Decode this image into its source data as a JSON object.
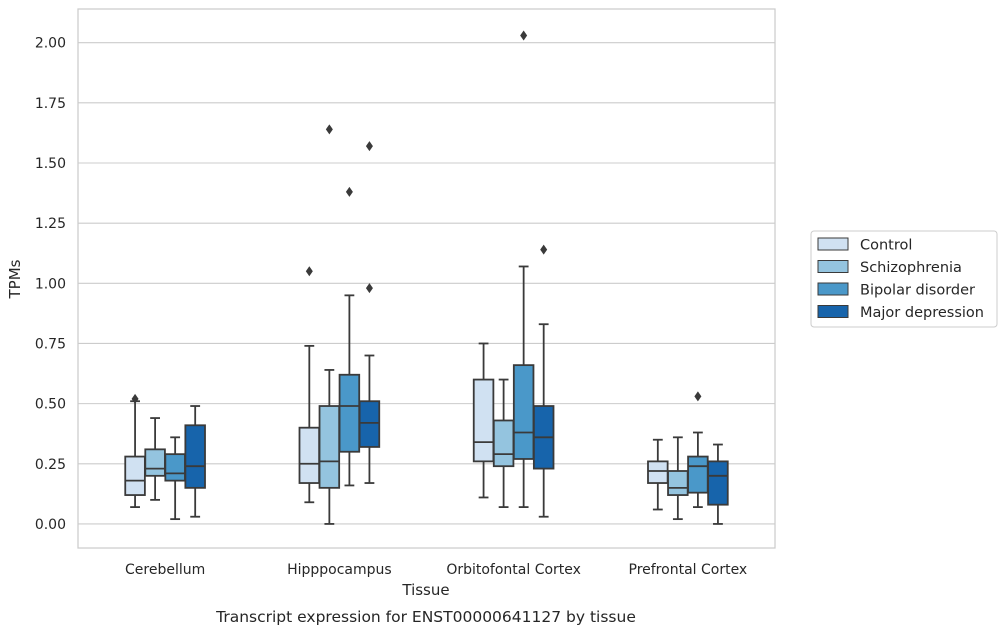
{
  "chart_data": {
    "type": "boxplot",
    "caption": "Transcript expression for ENST00000641127 by tissue",
    "xlabel": "Tissue",
    "ylabel": "TPMs",
    "ylim": [
      -0.1,
      2.14
    ],
    "yticks": [
      0.0,
      0.25,
      0.5,
      0.75,
      1.0,
      1.25,
      1.5,
      1.75,
      2.0
    ],
    "ytick_labels": [
      "0.00",
      "0.25",
      "0.50",
      "0.75",
      "1.00",
      "1.25",
      "1.50",
      "1.75",
      "2.00"
    ],
    "grid": "horizontal",
    "legend_position": "right",
    "categories": [
      "Cerebellum",
      "Hipppocampus",
      "Orbitofontal Cortex",
      "Prefrontal Cortex"
    ],
    "series": [
      {
        "name": "Control",
        "color": "#d0e1f2",
        "boxes": [
          {
            "whisker_low": 0.07,
            "q1": 0.12,
            "median": 0.18,
            "q3": 0.28,
            "whisker_high": 0.51,
            "outliers": [
              0.52
            ]
          },
          {
            "whisker_low": 0.09,
            "q1": 0.17,
            "median": 0.25,
            "q3": 0.4,
            "whisker_high": 0.74,
            "outliers": [
              1.05
            ]
          },
          {
            "whisker_low": 0.11,
            "q1": 0.26,
            "median": 0.34,
            "q3": 0.6,
            "whisker_high": 0.75,
            "outliers": []
          },
          {
            "whisker_low": 0.06,
            "q1": 0.17,
            "median": 0.22,
            "q3": 0.26,
            "whisker_high": 0.35,
            "outliers": []
          }
        ]
      },
      {
        "name": "Schizophrenia",
        "color": "#94c4df",
        "boxes": [
          {
            "whisker_low": 0.1,
            "q1": 0.2,
            "median": 0.23,
            "q3": 0.31,
            "whisker_high": 0.44,
            "outliers": []
          },
          {
            "whisker_low": 0.0,
            "q1": 0.15,
            "median": 0.26,
            "q3": 0.49,
            "whisker_high": 0.64,
            "outliers": [
              1.64
            ]
          },
          {
            "whisker_low": 0.07,
            "q1": 0.24,
            "median": 0.29,
            "q3": 0.43,
            "whisker_high": 0.6,
            "outliers": []
          },
          {
            "whisker_low": 0.02,
            "q1": 0.12,
            "median": 0.15,
            "q3": 0.22,
            "whisker_high": 0.36,
            "outliers": []
          }
        ]
      },
      {
        "name": "Bipolar disorder",
        "color": "#4a98c9",
        "boxes": [
          {
            "whisker_low": 0.02,
            "q1": 0.18,
            "median": 0.21,
            "q3": 0.29,
            "whisker_high": 0.36,
            "outliers": []
          },
          {
            "whisker_low": 0.16,
            "q1": 0.3,
            "median": 0.49,
            "q3": 0.62,
            "whisker_high": 0.95,
            "outliers": [
              1.38
            ]
          },
          {
            "whisker_low": 0.07,
            "q1": 0.27,
            "median": 0.38,
            "q3": 0.66,
            "whisker_high": 1.07,
            "outliers": [
              2.03
            ]
          },
          {
            "whisker_low": 0.07,
            "q1": 0.13,
            "median": 0.24,
            "q3": 0.28,
            "whisker_high": 0.38,
            "outliers": [
              0.53
            ]
          }
        ]
      },
      {
        "name": "Major depression",
        "color": "#1764ab",
        "boxes": [
          {
            "whisker_low": 0.03,
            "q1": 0.15,
            "median": 0.24,
            "q3": 0.41,
            "whisker_high": 0.49,
            "outliers": []
          },
          {
            "whisker_low": 0.17,
            "q1": 0.32,
            "median": 0.42,
            "q3": 0.51,
            "whisker_high": 0.7,
            "outliers": [
              0.98,
              1.57
            ]
          },
          {
            "whisker_low": 0.03,
            "q1": 0.23,
            "median": 0.36,
            "q3": 0.49,
            "whisker_high": 0.83,
            "outliers": [
              1.14
            ]
          },
          {
            "whisker_low": 0.0,
            "q1": 0.08,
            "median": 0.2,
            "q3": 0.26,
            "whisker_high": 0.33,
            "outliers": []
          }
        ]
      }
    ]
  }
}
